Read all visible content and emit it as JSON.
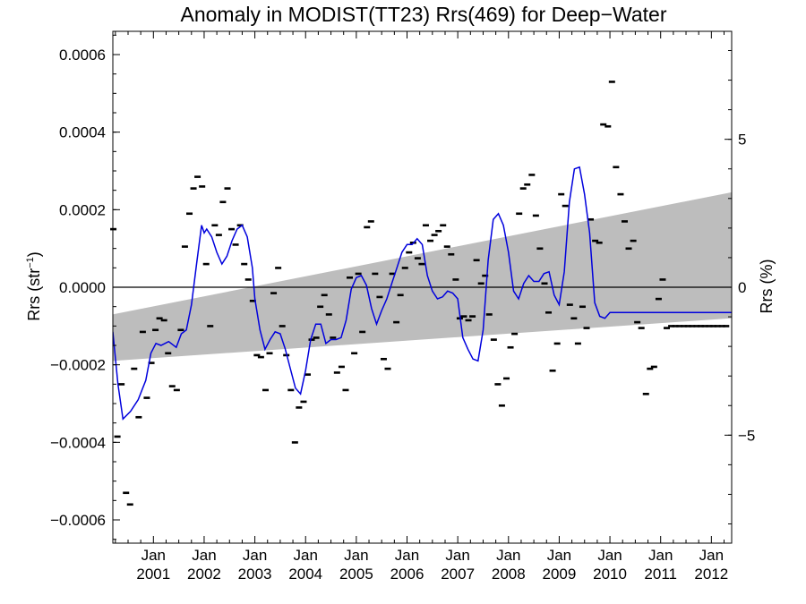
{
  "chart_data": {
    "type": "scatter",
    "title": "Anomaly in MODIST(TT23) Rrs(469) for Deep−Water",
    "ylabel_left": "Rrs (str",
    "ylabel_left_sup": "−1",
    "ylabel_left_end": ")",
    "ylabel_right": "Rrs (%)",
    "xlim": [
      2000.2,
      2012.4
    ],
    "ylim": [
      -0.00066,
      0.00066
    ],
    "y2lim": [
      -8.65,
      8.65
    ],
    "x_ticks": [
      {
        "value": 2001,
        "line1": "Jan",
        "line2": "2001"
      },
      {
        "value": 2002,
        "line1": "Jan",
        "line2": "2002"
      },
      {
        "value": 2003,
        "line1": "Jan",
        "line2": "2003"
      },
      {
        "value": 2004,
        "line1": "Jan",
        "line2": "2004"
      },
      {
        "value": 2005,
        "line1": "Jan",
        "line2": "2005"
      },
      {
        "value": 2006,
        "line1": "Jan",
        "line2": "2006"
      },
      {
        "value": 2007,
        "line1": "Jan",
        "line2": "2007"
      },
      {
        "value": 2008,
        "line1": "Jan",
        "line2": "2008"
      },
      {
        "value": 2009,
        "line1": "Jan",
        "line2": "2009"
      },
      {
        "value": 2010,
        "line1": "Jan",
        "line2": "2010"
      },
      {
        "value": 2011,
        "line1": "Jan",
        "line2": "2011"
      },
      {
        "value": 2012,
        "line1": "Jan",
        "line2": "2012"
      }
    ],
    "y_ticks": [
      {
        "value": 0.0006,
        "label": "0.0006"
      },
      {
        "value": 0.0004,
        "label": "0.0004"
      },
      {
        "value": 0.0002,
        "label": "0.0002"
      },
      {
        "value": 0.0,
        "label": "0.0000"
      },
      {
        "value": -0.0002,
        "label": "−0.0002"
      },
      {
        "value": -0.0004,
        "label": "−0.0004"
      },
      {
        "value": -0.0006,
        "label": "−0.0006"
      }
    ],
    "y2_ticks": [
      {
        "value": 5,
        "label": "5"
      },
      {
        "value": 0,
        "label": "0"
      },
      {
        "value": -5,
        "label": "−5"
      }
    ],
    "trend_band": {
      "x": [
        2000.2,
        2012.4
      ],
      "upper": [
        -7e-05,
        0.000245
      ],
      "lower": [
        -0.00019,
        -8e-05
      ]
    },
    "zero_line": 0,
    "smoothed_series": {
      "color": "#0000dd",
      "x": [
        2000.2,
        2000.3,
        2000.4,
        2000.55,
        2000.7,
        2000.85,
        2000.95,
        2001.05,
        2001.15,
        2001.3,
        2001.45,
        2001.55,
        2001.65,
        2001.75,
        2001.85,
        2001.95,
        2002.0,
        2002.05,
        2002.15,
        2002.25,
        2002.35,
        2002.45,
        2002.55,
        2002.65,
        2002.75,
        2002.85,
        2002.95,
        2003.0,
        2003.1,
        2003.2,
        2003.3,
        2003.4,
        2003.5,
        2003.6,
        2003.7,
        2003.8,
        2003.9,
        2004.0,
        2004.1,
        2004.2,
        2004.3,
        2004.4,
        2004.5,
        2004.6,
        2004.7,
        2004.8,
        2004.9,
        2005.0,
        2005.1,
        2005.2,
        2005.3,
        2005.4,
        2005.5,
        2005.6,
        2005.7,
        2005.8,
        2005.9,
        2006.0,
        2006.1,
        2006.2,
        2006.3,
        2006.4,
        2006.5,
        2006.6,
        2006.7,
        2006.8,
        2006.9,
        2007.0,
        2007.1,
        2007.2,
        2007.3,
        2007.4,
        2007.5,
        2007.6,
        2007.7,
        2007.8,
        2007.9,
        2008.0,
        2008.1,
        2008.2,
        2008.3,
        2008.4,
        2008.5,
        2008.6,
        2008.7,
        2008.8,
        2008.9,
        2009.0,
        2009.1,
        2009.2,
        2009.3,
        2009.4,
        2009.5,
        2009.6,
        2009.7,
        2009.8,
        2009.9,
        2010.0,
        2010.1,
        2010.2,
        2010.3,
        2010.4,
        2010.5,
        2010.6,
        2010.7,
        2010.8,
        2010.9,
        2011.0,
        2011.1,
        2011.2,
        2011.3,
        2011.4,
        2011.5,
        2011.6,
        2011.7,
        2011.8,
        2011.9,
        2012.0,
        2012.1,
        2012.2,
        2012.3,
        2012.4
      ],
      "y": [
        -0.000115,
        -0.00025,
        -0.00034,
        -0.00032,
        -0.00029,
        -0.00024,
        -0.00017,
        -0.000145,
        -0.00015,
        -0.00014,
        -0.000155,
        -0.00012,
        -0.00011,
        -4.5e-05,
        6e-05,
        0.00016,
        0.00014,
        0.00015,
        0.00013,
        9e-05,
        6e-05,
        8e-05,
        0.00012,
        0.00015,
        0.00016,
        0.00013,
        5e-05,
        -3e-05,
        -0.00011,
        -0.00016,
        -0.000135,
        -0.000115,
        -0.00012,
        -0.00016,
        -0.00021,
        -0.00026,
        -0.000275,
        -0.000215,
        -0.000135,
        -9.5e-05,
        -9.5e-05,
        -0.000145,
        -0.000135,
        -0.000135,
        -0.00013,
        -8.5e-05,
        -5e-06,
        2.5e-05,
        3e-05,
        5e-06,
        -5.5e-05,
        -9.5e-05,
        -6e-05,
        -3e-05,
        1e-05,
        5e-05,
        9e-05,
        0.00011,
        0.00011,
        0.000125,
        0.00011,
        3e-05,
        -1e-05,
        -3e-05,
        -2.5e-05,
        -1e-05,
        -1.5e-05,
        -3e-05,
        -0.00013,
        -0.00016,
        -0.000185,
        -0.00019,
        -0.00011,
        7e-05,
        0.000175,
        0.00019,
        0.00016,
        9e-05,
        -1e-05,
        -3e-05,
        1e-05,
        3e-05,
        1.5e-05,
        1.5e-05,
        3.5e-05,
        4e-05,
        -2e-05,
        -4.5e-05,
        4e-05,
        0.00022,
        0.000305,
        0.00031,
        0.00024,
        0.00014,
        -4e-05,
        -7.5e-05,
        -8e-05,
        -6.5e-05,
        -6.5e-05,
        -6.5e-05,
        -6.5e-05,
        -6.5e-05,
        -6.5e-05,
        -6.5e-05,
        -6.5e-05,
        -6.5e-05,
        -6.5e-05,
        -6.5e-05,
        -6.5e-05,
        -6.5e-05,
        -6.5e-05,
        -6.5e-05,
        -6.5e-05,
        -6.5e-05,
        -6.5e-05,
        -6.5e-05,
        -6.5e-05,
        -6.5e-05,
        -6.5e-05,
        -6.5e-05,
        -6.5e-05,
        -6.5e-05
      ]
    },
    "monthly_points": {
      "color": "#000000",
      "x": [
        2000.21,
        2000.29,
        2000.37,
        2000.46,
        2000.54,
        2000.62,
        2000.71,
        2000.79,
        2000.87,
        2000.96,
        2001.04,
        2001.12,
        2001.21,
        2001.29,
        2001.37,
        2001.46,
        2001.54,
        2001.62,
        2001.71,
        2001.79,
        2001.87,
        2001.96,
        2002.04,
        2002.12,
        2002.21,
        2002.29,
        2002.37,
        2002.46,
        2002.54,
        2002.62,
        2002.71,
        2002.79,
        2002.87,
        2002.96,
        2003.04,
        2003.12,
        2003.21,
        2003.29,
        2003.37,
        2003.46,
        2003.54,
        2003.62,
        2003.71,
        2003.79,
        2003.87,
        2003.96,
        2004.04,
        2004.12,
        2004.21,
        2004.29,
        2004.37,
        2004.46,
        2004.54,
        2004.62,
        2004.71,
        2004.79,
        2004.87,
        2004.96,
        2005.04,
        2005.12,
        2005.21,
        2005.29,
        2005.37,
        2005.46,
        2005.54,
        2005.62,
        2005.71,
        2005.79,
        2005.87,
        2005.96,
        2006.04,
        2006.12,
        2006.21,
        2006.29,
        2006.37,
        2006.46,
        2006.54,
        2006.62,
        2006.71,
        2006.79,
        2006.87,
        2006.96,
        2007.04,
        2007.12,
        2007.21,
        2007.29,
        2007.37,
        2007.46,
        2007.54,
        2007.62,
        2007.71,
        2007.79,
        2007.87,
        2007.96,
        2008.04,
        2008.12,
        2008.21,
        2008.29,
        2008.37,
        2008.46,
        2008.54,
        2008.62,
        2008.71,
        2008.79,
        2008.87,
        2008.96,
        2009.04,
        2009.12,
        2009.21,
        2009.29,
        2009.37,
        2009.46,
        2009.54,
        2009.62,
        2009.71,
        2009.79,
        2009.87,
        2009.96,
        2010.04,
        2010.12,
        2010.21,
        2010.29,
        2010.37,
        2010.46,
        2010.54,
        2010.62,
        2010.71,
        2010.79,
        2010.87,
        2010.96,
        2011.04,
        2011.12,
        2011.21,
        2011.29,
        2011.37,
        2011.46,
        2011.54,
        2011.62,
        2011.71,
        2011.79,
        2011.87,
        2011.96,
        2012.04,
        2012.12,
        2012.21,
        2012.29
      ],
      "y": [
        0.00015,
        -0.000385,
        -0.00025,
        -0.00053,
        -0.00056,
        -0.00021,
        -0.000335,
        -0.000115,
        -0.000285,
        -0.000195,
        -0.00011,
        -8e-05,
        -8.5e-05,
        -0.00017,
        -0.000255,
        -0.000265,
        -0.00011,
        0.000105,
        0.00019,
        0.000255,
        0.000285,
        0.00026,
        6e-05,
        -0.0001,
        0.00016,
        0.000135,
        0.00022,
        0.000255,
        0.00015,
        0.00011,
        0.00016,
        6e-05,
        2e-05,
        -3.5e-05,
        -0.000175,
        -0.00018,
        -0.000265,
        -0.00017,
        -1.5e-05,
        5e-05,
        -0.0001,
        -0.000175,
        -0.000265,
        -0.0004,
        -0.00031,
        -0.000295,
        -0.000225,
        -0.000135,
        -0.00013,
        -5e-05,
        -2e-05,
        -7e-05,
        -0.00013,
        -0.00022,
        -0.000205,
        -0.000265,
        2.5e-05,
        -0.00017,
        3.5e-05,
        -0.000115,
        0.000155,
        0.00017,
        3.5e-05,
        -2.5e-05,
        -0.000185,
        -0.00021,
        3.5e-05,
        -9e-05,
        -2e-05,
        5e-05,
        9e-05,
        0.000115,
        7.5e-05,
        6e-05,
        0.00016,
        0.00012,
        0.000135,
        0.000145,
        0.00016,
        0.000105,
        8.5e-05,
        2e-05,
        -8e-05,
        -7.5e-05,
        -8.5e-05,
        -7.5e-05,
        7e-05,
        1e-05,
        3e-05,
        -7e-05,
        -0.000135,
        -0.00025,
        -0.000305,
        -0.000235,
        -0.000155,
        -0.00012,
        0.00019,
        0.000255,
        0.000265,
        0.00029,
        0.000185,
        0.0001,
        1e-05,
        -6.5e-05,
        -0.000215,
        -0.000145,
        0.00024,
        0.00021,
        -4.5e-05,
        -8e-05,
        -0.000145,
        -5e-05,
        -0.000105,
        0.000175,
        0.00012,
        0.000115,
        0.00042,
        0.000415,
        0.00053,
        0.00031,
        0.00024,
        0.00017,
        0.0001,
        0.00012,
        -9e-05,
        -0.000105,
        -0.000275,
        -0.00021,
        -0.000205,
        -3e-05,
        2e-05,
        -0.000105,
        -0.0001,
        -0.0001,
        -0.0001,
        -0.0001,
        -0.0001,
        -0.0001,
        -0.0001,
        -0.0001,
        -0.0001,
        -0.0001,
        -0.0001,
        -0.0001,
        -0.0001,
        -0.0001
      ]
    }
  }
}
